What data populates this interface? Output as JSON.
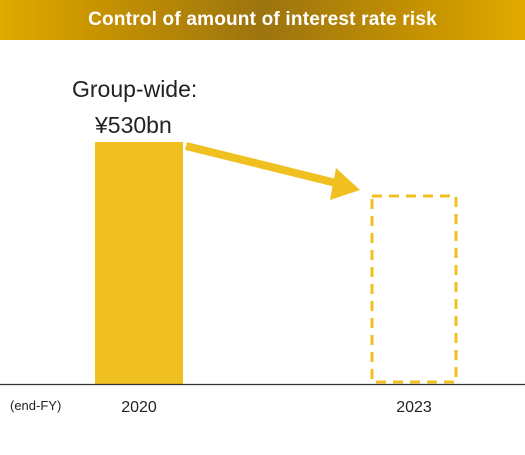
{
  "title": "Control of amount of interest rate risk",
  "colors": {
    "bar": "#f0c020",
    "axis": "#333333"
  },
  "annotation": {
    "line1": "Group-wide:",
    "line2": "¥530bn"
  },
  "unit_note": "(end-FY)",
  "chart_data": {
    "type": "bar",
    "categories": [
      "2020",
      "2023"
    ],
    "series": [
      {
        "values": [
          530,
          null
        ]
      }
    ],
    "target": {
      "category": "2023",
      "style": "dashed-outline",
      "direction": "decrease"
    },
    "annotations": [
      "Group-wide:",
      "¥530bn"
    ]
  }
}
